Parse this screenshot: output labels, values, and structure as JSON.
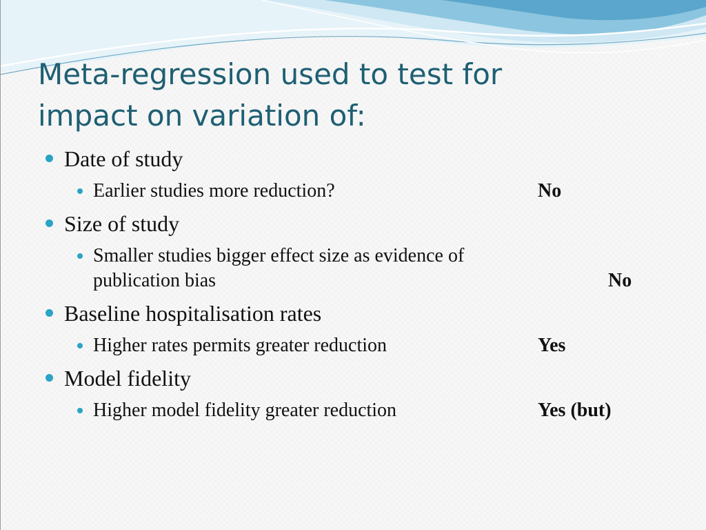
{
  "slide": {
    "title_lines": [
      "Meta-regression used to test for",
      "impact on variation of:"
    ],
    "items": [
      {
        "text": "Date of study",
        "sub": {
          "text": "Earlier studies more reduction?",
          "answer": "No"
        }
      },
      {
        "text": "Size of study",
        "sub": {
          "text_lines": [
            "Smaller studies bigger effect size as evidence of",
            "publication bias"
          ],
          "answer": "No"
        }
      },
      {
        "text": "Baseline hospitalisation rates",
        "sub": {
          "text": "Higher rates permits greater reduction",
          "answer": "Yes"
        }
      },
      {
        "text": "Model fidelity",
        "sub": {
          "text": "Higher model fidelity greater reduction",
          "answer": "Yes (but)"
        }
      }
    ]
  },
  "colors": {
    "title": "#1e5f73",
    "bullet": "#2aa3c5",
    "wave_light": "#cfe8f3",
    "wave_mid": "#8cc5df",
    "wave_dark": "#5ba6cc"
  }
}
